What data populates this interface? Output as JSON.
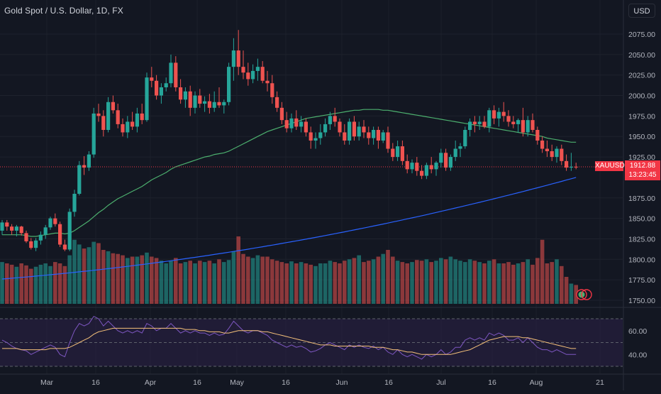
{
  "header": {
    "symbol_title": "Gold Spot / U.S. Dollar, 1D, FX",
    "currency_button": "USD"
  },
  "last_price": {
    "symbol": "XAUUSD",
    "price": "1912.88",
    "countdown": "13:23:45",
    "value": 1912.88
  },
  "colors": {
    "background": "#131722",
    "bullish": "#26a69a",
    "bearish": "#ef5350",
    "vol_bull": "#26a69a",
    "vol_bear": "#ef5350",
    "ma_fast": "#4caf6e",
    "ma_slow": "#2962ff",
    "rsi_line": "#7e57c2",
    "rsi_ma": "#f5c17a",
    "rsi_band_fill": "#2a1f44",
    "last_price": "#f23645",
    "text": "#b2b5be"
  },
  "chart_data": {
    "type": "candlestick",
    "price_axis_labels": [
      "2075.00",
      "2050.00",
      "2025.00",
      "2000.00",
      "1975.00",
      "1950.00",
      "1925.00",
      "1875.00",
      "1850.00",
      "1825.00",
      "1800.00",
      "1775.00",
      "1750.00"
    ],
    "rsi_axis_labels": [
      "60.00",
      "40.00"
    ],
    "rsi_bands": [
      70,
      50,
      30
    ],
    "time_axis_labels": [
      "Mar",
      "16",
      "Apr",
      "16",
      "May",
      "16",
      "Jun",
      "16",
      "Jul",
      "16",
      "Aug",
      "21"
    ],
    "ylim": [
      1745,
      2095
    ],
    "candles": [
      [
        1835,
        1848,
        1830,
        1845
      ],
      [
        1845,
        1848,
        1835,
        1840
      ],
      [
        1840,
        1843,
        1830,
        1835
      ],
      [
        1835,
        1842,
        1828,
        1840
      ],
      [
        1840,
        1841,
        1829,
        1832
      ],
      [
        1832,
        1835,
        1820,
        1822
      ],
      [
        1822,
        1826,
        1812,
        1814
      ],
      [
        1814,
        1826,
        1810,
        1823
      ],
      [
        1823,
        1834,
        1818,
        1830
      ],
      [
        1830,
        1842,
        1825,
        1839
      ],
      [
        1839,
        1852,
        1836,
        1850
      ],
      [
        1850,
        1856,
        1840,
        1843
      ],
      [
        1843,
        1846,
        1815,
        1818
      ],
      [
        1818,
        1824,
        1810,
        1812
      ],
      [
        1812,
        1862,
        1810,
        1858
      ],
      [
        1858,
        1885,
        1852,
        1880
      ],
      [
        1880,
        1920,
        1878,
        1915
      ],
      [
        1915,
        1926,
        1903,
        1912
      ],
      [
        1912,
        1932,
        1908,
        1928
      ],
      [
        1928,
        1985,
        1924,
        1978
      ],
      [
        1978,
        1990,
        1968,
        1975
      ],
      [
        1975,
        1982,
        1950,
        1958
      ],
      [
        1958,
        1998,
        1955,
        1992
      ],
      [
        1992,
        2000,
        1978,
        1982
      ],
      [
        1982,
        1990,
        1960,
        1965
      ],
      [
        1965,
        1972,
        1950,
        1955
      ],
      [
        1955,
        1975,
        1948,
        1968
      ],
      [
        1968,
        1980,
        1958,
        1962
      ],
      [
        1962,
        1985,
        1955,
        1978
      ],
      [
        1978,
        1990,
        1965,
        1970
      ],
      [
        1970,
        2028,
        1968,
        2022
      ],
      [
        2022,
        2035,
        2010,
        2018
      ],
      [
        2018,
        2025,
        1995,
        2000
      ],
      [
        2000,
        2015,
        1990,
        2010
      ],
      [
        2010,
        2022,
        2005,
        2015
      ],
      [
        2015,
        2050,
        2010,
        2040
      ],
      [
        2040,
        2048,
        2005,
        2010
      ],
      [
        2010,
        2020,
        1990,
        1995
      ],
      [
        1995,
        2010,
        1985,
        2005
      ],
      [
        2005,
        2012,
        1975,
        1985
      ],
      [
        1985,
        2005,
        1978,
        2000
      ],
      [
        2000,
        2008,
        1985,
        1990
      ],
      [
        1990,
        1999,
        1980,
        1993
      ],
      [
        1993,
        2002,
        1978,
        1985
      ],
      [
        1985,
        2005,
        1980,
        1992
      ],
      [
        1992,
        2010,
        1985,
        1988
      ],
      [
        1988,
        1995,
        1978,
        1992
      ],
      [
        1992,
        2040,
        1988,
        2035
      ],
      [
        2035,
        2070,
        2018,
        2055
      ],
      [
        2055,
        2080,
        2025,
        2035
      ],
      [
        2035,
        2055,
        2020,
        2028
      ],
      [
        2028,
        2040,
        2012,
        2020
      ],
      [
        2020,
        2038,
        2015,
        2030
      ],
      [
        2030,
        2045,
        2018,
        2035
      ],
      [
        2035,
        2042,
        2015,
        2018
      ],
      [
        2018,
        2030,
        2005,
        2015
      ],
      [
        2015,
        2025,
        1990,
        1998
      ],
      [
        1998,
        2005,
        1980,
        1985
      ],
      [
        1985,
        1992,
        1965,
        1970
      ],
      [
        1970,
        1980,
        1955,
        1960
      ],
      [
        1960,
        1978,
        1955,
        1972
      ],
      [
        1972,
        1982,
        1958,
        1962
      ],
      [
        1962,
        1975,
        1955,
        1968
      ],
      [
        1968,
        1972,
        1950,
        1955
      ],
      [
        1955,
        1962,
        1935,
        1945
      ],
      [
        1945,
        1955,
        1935,
        1948
      ],
      [
        1948,
        1965,
        1940,
        1955
      ],
      [
        1955,
        1972,
        1950,
        1965
      ],
      [
        1965,
        1980,
        1958,
        1975
      ],
      [
        1975,
        1985,
        1962,
        1968
      ],
      [
        1968,
        1972,
        1950,
        1955
      ],
      [
        1955,
        1965,
        1940,
        1945
      ],
      [
        1945,
        1972,
        1940,
        1968
      ],
      [
        1968,
        1975,
        1945,
        1950
      ],
      [
        1950,
        1968,
        1945,
        1962
      ],
      [
        1962,
        1970,
        1948,
        1955
      ],
      [
        1955,
        1962,
        1940,
        1948
      ],
      [
        1948,
        1962,
        1940,
        1958
      ],
      [
        1958,
        1962,
        1935,
        1945
      ],
      [
        1945,
        1958,
        1942,
        1955
      ],
      [
        1955,
        1962,
        1930,
        1935
      ],
      [
        1935,
        1942,
        1920,
        1925
      ],
      [
        1925,
        1945,
        1920,
        1938
      ],
      [
        1938,
        1945,
        1915,
        1920
      ],
      [
        1920,
        1928,
        1905,
        1910
      ],
      [
        1910,
        1922,
        1905,
        1918
      ],
      [
        1918,
        1925,
        1902,
        1908
      ],
      [
        1908,
        1915,
        1898,
        1902
      ],
      [
        1902,
        1918,
        1898,
        1915
      ],
      [
        1915,
        1925,
        1905,
        1910
      ],
      [
        1910,
        1920,
        1902,
        1918
      ],
      [
        1918,
        1935,
        1912,
        1930
      ],
      [
        1930,
        1935,
        1908,
        1912
      ],
      [
        1912,
        1928,
        1908,
        1925
      ],
      [
        1925,
        1945,
        1920,
        1935
      ],
      [
        1935,
        1942,
        1925,
        1938
      ],
      [
        1938,
        1962,
        1935,
        1958
      ],
      [
        1958,
        1972,
        1950,
        1968
      ],
      [
        1968,
        1975,
        1955,
        1965
      ],
      [
        1965,
        1975,
        1958,
        1968
      ],
      [
        1968,
        1975,
        1960,
        1962
      ],
      [
        1962,
        1985,
        1955,
        1982
      ],
      [
        1982,
        1988,
        1965,
        1972
      ],
      [
        1972,
        1985,
        1962,
        1980
      ],
      [
        1980,
        1992,
        1968,
        1975
      ],
      [
        1975,
        1982,
        1962,
        1968
      ],
      [
        1968,
        1975,
        1960,
        1965
      ],
      [
        1965,
        1972,
        1955,
        1970
      ],
      [
        1970,
        1985,
        1950,
        1955
      ],
      [
        1955,
        1975,
        1950,
        1970
      ],
      [
        1970,
        1978,
        1955,
        1958
      ],
      [
        1958,
        1962,
        1940,
        1945
      ],
      [
        1945,
        1950,
        1930,
        1935
      ],
      [
        1935,
        1945,
        1925,
        1932
      ],
      [
        1932,
        1940,
        1920,
        1925
      ],
      [
        1925,
        1938,
        1918,
        1935
      ],
      [
        1935,
        1940,
        1915,
        1920
      ],
      [
        1920,
        1928,
        1908,
        1912
      ],
      [
        1912,
        1930,
        1908,
        1913
      ],
      [
        1913,
        1918,
        1910,
        1912.88
      ]
    ],
    "volumes": [
      62,
      60,
      58,
      55,
      60,
      57,
      52,
      55,
      58,
      60,
      56,
      62,
      60,
      56,
      72,
      95,
      88,
      82,
      84,
      92,
      90,
      80,
      78,
      75,
      74,
      72,
      68,
      70,
      70,
      72,
      76,
      70,
      68,
      64,
      60,
      64,
      68,
      60,
      62,
      64,
      60,
      64,
      62,
      64,
      60,
      66,
      62,
      65,
      78,
      100,
      74,
      70,
      68,
      72,
      70,
      70,
      66,
      64,
      62,
      60,
      63,
      60,
      62,
      60,
      58,
      56,
      60,
      60,
      64,
      62,
      60,
      64,
      66,
      68,
      72,
      62,
      64,
      66,
      70,
      74,
      80,
      70,
      64,
      62,
      60,
      62,
      65,
      64,
      66,
      62,
      64,
      68,
      66,
      70,
      66,
      64,
      62,
      66,
      64,
      62,
      60,
      64,
      66,
      60,
      60,
      62,
      58,
      60,
      62,
      66,
      58,
      68,
      95,
      60,
      62,
      66,
      56,
      40,
      30,
      28
    ],
    "rsi": [
      52,
      50,
      47,
      45,
      44,
      43,
      40,
      42,
      44,
      46,
      48,
      46,
      40,
      38,
      50,
      60,
      66,
      64,
      66,
      72,
      70,
      64,
      68,
      64,
      60,
      58,
      60,
      58,
      60,
      58,
      66,
      64,
      60,
      62,
      62,
      66,
      62,
      58,
      60,
      58,
      60,
      58,
      58,
      56,
      58,
      56,
      57,
      62,
      68,
      64,
      60,
      58,
      60,
      60,
      58,
      56,
      52,
      50,
      48,
      46,
      48,
      46,
      47,
      45,
      42,
      43,
      45,
      48,
      50,
      48,
      46,
      44,
      48,
      46,
      48,
      46,
      45,
      47,
      44,
      46,
      42,
      40,
      44,
      40,
      38,
      40,
      38,
      36,
      40,
      38,
      40,
      44,
      40,
      42,
      46,
      46,
      52,
      54,
      52,
      54,
      52,
      58,
      56,
      58,
      56,
      52,
      52,
      54,
      50,
      54,
      50,
      46,
      44,
      44,
      42,
      44,
      42,
      40,
      40,
      40
    ],
    "rsi_ma": [
      45,
      45,
      45,
      45,
      44,
      44,
      44,
      44,
      44,
      44,
      45,
      45,
      45,
      45,
      46,
      48,
      50,
      52,
      54,
      57,
      59,
      60,
      61,
      62,
      62,
      62,
      62,
      62,
      62,
      62,
      62,
      62,
      62,
      62,
      62,
      62,
      62,
      62,
      61,
      61,
      61,
      60,
      60,
      59,
      59,
      59,
      58,
      58,
      59,
      60,
      60,
      60,
      60,
      60,
      59,
      59,
      58,
      57,
      56,
      55,
      54,
      53,
      52,
      51,
      50,
      49,
      48,
      48,
      48,
      47,
      47,
      47,
      47,
      47,
      47,
      47,
      47,
      46,
      46,
      46,
      45,
      44,
      44,
      43,
      42,
      42,
      41,
      40,
      40,
      40,
      40,
      40,
      40,
      40,
      41,
      42,
      43,
      44,
      46,
      48,
      50,
      52,
      53,
      54,
      55,
      55,
      55,
      55,
      54,
      54,
      53,
      52,
      51,
      50,
      49,
      48,
      47,
      46,
      45,
      45
    ],
    "ma_fast": [
      1830,
      1830,
      1830,
      1830,
      1830,
      1829,
      1828,
      1828,
      1829,
      1830,
      1831,
      1832,
      1832,
      1831,
      1832,
      1835,
      1839,
      1843,
      1847,
      1852,
      1857,
      1861,
      1866,
      1870,
      1874,
      1877,
      1880,
      1883,
      1886,
      1889,
      1893,
      1897,
      1900,
      1903,
      1906,
      1910,
      1913,
      1915,
      1917,
      1919,
      1921,
      1923,
      1925,
      1926,
      1928,
      1929,
      1930,
      1932,
      1935,
      1938,
      1941,
      1944,
      1947,
      1950,
      1953,
      1956,
      1958,
      1960,
      1962,
      1964,
      1966,
      1968,
      1970,
      1972,
      1973,
      1974,
      1975,
      1976,
      1977,
      1978,
      1979,
      1980,
      1981,
      1982,
      1982,
      1983,
      1983,
      1983,
      1983,
      1982,
      1982,
      1981,
      1980,
      1979,
      1978,
      1977,
      1976,
      1975,
      1974,
      1973,
      1972,
      1971,
      1970,
      1969,
      1968,
      1967,
      1966,
      1965,
      1964,
      1963,
      1962,
      1961,
      1960,
      1959,
      1958,
      1957,
      1956,
      1955,
      1954,
      1953,
      1952,
      1951,
      1950,
      1948,
      1947,
      1946,
      1945,
      1944,
      1943,
      1943
    ],
    "ma_slow_start": 1776,
    "ma_slow_end": 1900
  }
}
